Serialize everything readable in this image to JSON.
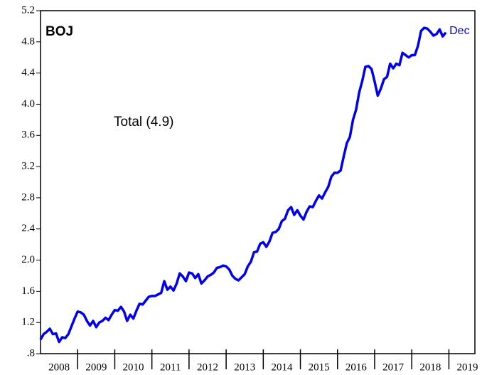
{
  "chart_data": {
    "type": "line",
    "title": "BOJ",
    "annotation": "Total (4.9)",
    "end_label": "Dec",
    "x": [
      2008,
      2008.083,
      2008.167,
      2008.25,
      2008.333,
      2008.417,
      2008.5,
      2008.583,
      2008.667,
      2008.75,
      2008.833,
      2008.917,
      2009,
      2009.083,
      2009.167,
      2009.25,
      2009.333,
      2009.417,
      2009.5,
      2009.583,
      2009.667,
      2009.75,
      2009.833,
      2009.917,
      2010,
      2010.083,
      2010.167,
      2010.25,
      2010.333,
      2010.417,
      2010.5,
      2010.583,
      2010.667,
      2010.75,
      2010.833,
      2010.917,
      2011,
      2011.083,
      2011.167,
      2011.25,
      2011.333,
      2011.417,
      2011.5,
      2011.583,
      2011.667,
      2011.75,
      2011.833,
      2011.917,
      2012,
      2012.083,
      2012.167,
      2012.25,
      2012.333,
      2012.417,
      2012.5,
      2012.583,
      2012.667,
      2012.75,
      2012.833,
      2012.917,
      2013,
      2013.083,
      2013.167,
      2013.25,
      2013.333,
      2013.417,
      2013.5,
      2013.583,
      2013.667,
      2013.75,
      2013.833,
      2013.917,
      2014,
      2014.083,
      2014.167,
      2014.25,
      2014.333,
      2014.417,
      2014.5,
      2014.583,
      2014.667,
      2014.75,
      2014.833,
      2014.917,
      2015,
      2015.083,
      2015.167,
      2015.25,
      2015.333,
      2015.417,
      2015.5,
      2015.583,
      2015.667,
      2015.75,
      2015.833,
      2015.917,
      2016,
      2016.083,
      2016.167,
      2016.25,
      2016.333,
      2016.417,
      2016.5,
      2016.583,
      2016.667,
      2016.75,
      2016.833,
      2016.917,
      2017,
      2017.083,
      2017.167,
      2017.25,
      2017.333,
      2017.417,
      2017.5,
      2017.583,
      2017.667,
      2017.75,
      2017.833,
      2017.917,
      2018,
      2018.083,
      2018.167,
      2018.25,
      2018.333,
      2018.417,
      2018.5,
      2018.583,
      2018.667,
      2018.75,
      2018.833,
      2018.917
    ],
    "series": [
      {
        "name": "Total",
        "color": "#0000ee",
        "values": [
          0.98,
          1.05,
          1.08,
          1.12,
          1.05,
          1.06,
          0.95,
          1.01,
          1.0,
          1.05,
          1.15,
          1.25,
          1.34,
          1.33,
          1.3,
          1.22,
          1.16,
          1.22,
          1.14,
          1.2,
          1.22,
          1.26,
          1.23,
          1.3,
          1.36,
          1.35,
          1.4,
          1.34,
          1.22,
          1.3,
          1.25,
          1.35,
          1.44,
          1.43,
          1.48,
          1.53,
          1.54,
          1.54,
          1.56,
          1.58,
          1.73,
          1.62,
          1.66,
          1.61,
          1.7,
          1.83,
          1.79,
          1.73,
          1.84,
          1.83,
          1.77,
          1.82,
          1.7,
          1.74,
          1.79,
          1.81,
          1.84,
          1.9,
          1.91,
          1.93,
          1.92,
          1.88,
          1.8,
          1.76,
          1.74,
          1.78,
          1.82,
          1.92,
          1.98,
          2.1,
          2.11,
          2.21,
          2.23,
          2.17,
          2.24,
          2.35,
          2.36,
          2.4,
          2.5,
          2.53,
          2.64,
          2.68,
          2.58,
          2.64,
          2.57,
          2.52,
          2.62,
          2.69,
          2.68,
          2.76,
          2.83,
          2.79,
          2.87,
          2.94,
          3.07,
          3.12,
          3.12,
          3.15,
          3.33,
          3.5,
          3.58,
          3.8,
          3.93,
          4.15,
          4.3,
          4.48,
          4.49,
          4.45,
          4.29,
          4.11,
          4.2,
          4.32,
          4.35,
          4.52,
          4.46,
          4.52,
          4.5,
          4.66,
          4.63,
          4.6,
          4.63,
          4.63,
          4.75,
          4.94,
          4.98,
          4.97,
          4.93,
          4.88,
          4.9,
          4.96,
          4.87,
          4.92
        ]
      }
    ],
    "xlim": [
      2008,
      2019.7
    ],
    "xticks": [
      2009,
      2010,
      2011,
      2012,
      2013,
      2014,
      2015,
      2016,
      2017,
      2018,
      2019
    ],
    "xtick_labels": [
      {
        "value": 2008.5,
        "label": "2008"
      },
      {
        "value": 2009.5,
        "label": "2009"
      },
      {
        "value": 2010.5,
        "label": "2010"
      },
      {
        "value": 2011.5,
        "label": "2011"
      },
      {
        "value": 2012.5,
        "label": "2012"
      },
      {
        "value": 2013.5,
        "label": "2013"
      },
      {
        "value": 2014.5,
        "label": "2014"
      },
      {
        "value": 2015.5,
        "label": "2015"
      },
      {
        "value": 2016.5,
        "label": "2016"
      },
      {
        "value": 2017.5,
        "label": "2017"
      },
      {
        "value": 2018.5,
        "label": "2018"
      },
      {
        "value": 2019.5,
        "label": "2019"
      }
    ],
    "ylim": [
      0.8,
      5.2
    ],
    "yticks": [
      {
        "value": 0.8,
        "label": ".8"
      },
      1.2,
      1.6,
      {
        "value": 2,
        "label": "2.0"
      },
      2.4,
      2.8,
      3.2,
      3.6,
      {
        "value": 4,
        "label": "4.0"
      },
      4.4,
      4.8,
      5.2
    ],
    "grid": false
  }
}
